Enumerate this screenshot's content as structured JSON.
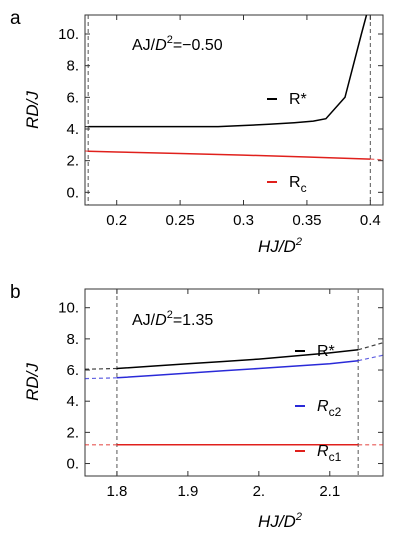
{
  "chart_data": [
    {
      "panel": "a",
      "type": "line",
      "annotation": "AJ/D²=−0.50",
      "annotation_parts": {
        "pre": "AJ/",
        "d": "D",
        "sup": "2",
        "post": "=−0.50"
      },
      "xlabel": "HJ/D²",
      "ylabel": "RD/J",
      "xlim": [
        0.175,
        0.41
      ],
      "ylim": [
        -0.8,
        11.2
      ],
      "xticks": [
        0.2,
        0.25,
        0.3,
        0.35,
        0.4
      ],
      "xtick_labels": [
        "0.2",
        "0.25",
        "0.3",
        "0.35",
        "0.4"
      ],
      "yticks": [
        0,
        2,
        4,
        6,
        8,
        10
      ],
      "ytick_labels": [
        "0.",
        "2.",
        "4.",
        "6.",
        "8.",
        "10."
      ],
      "vlines": [
        0.1775,
        0.4
      ],
      "series": [
        {
          "name": "R*",
          "color": "#000000",
          "x": [
            0.1775,
            0.2,
            0.25,
            0.28,
            0.3,
            0.32,
            0.34,
            0.355,
            0.365,
            0.38,
            0.393,
            0.397
          ],
          "y": [
            4.15,
            4.15,
            4.15,
            4.15,
            4.22,
            4.3,
            4.4,
            4.5,
            4.65,
            6.0,
            10.0,
            11.2
          ],
          "dashed_ext": [
            [
              0.175,
              4.15
            ],
            [
              0.1775,
              4.15
            ]
          ]
        },
        {
          "name": "R_c",
          "color": "#e0201c",
          "x": [
            0.1775,
            0.2,
            0.25,
            0.3,
            0.35,
            0.4
          ],
          "y": [
            2.6,
            2.55,
            2.45,
            2.35,
            2.23,
            2.1
          ],
          "dashed_ext": [
            [
              0.175,
              2.61
            ],
            [
              0.1775,
              2.6
            ],
            [
              0.4,
              2.1
            ],
            [
              0.41,
              2.05
            ]
          ]
        }
      ],
      "legend": [
        {
          "symbol": "–",
          "main": "R*",
          "sub": "",
          "italic": false,
          "color": "#000000"
        },
        {
          "symbol": "–",
          "main": "R",
          "sub": "c",
          "italic": false,
          "color": "#e0201c"
        }
      ],
      "grid": false
    },
    {
      "panel": "b",
      "type": "line",
      "annotation": "AJ/D²=1.35",
      "annotation_parts": {
        "pre": "AJ/",
        "d": "D",
        "sup": "2",
        "post": "=1.35"
      },
      "xlabel": "HJ/D²",
      "ylabel": "RD/J",
      "xlim": [
        1.755,
        2.175
      ],
      "ylim": [
        -0.8,
        11.2
      ],
      "xticks": [
        1.8,
        1.9,
        2.0,
        2.1
      ],
      "xtick_labels": [
        "1.8",
        "1.9",
        "2.",
        "2.1"
      ],
      "yticks": [
        0,
        2,
        4,
        6,
        8,
        10
      ],
      "ytick_labels": [
        "0.",
        "2.",
        "4.",
        "6.",
        "8.",
        "10."
      ],
      "vlines": [
        1.8,
        2.14
      ],
      "series": [
        {
          "name": "R*",
          "color": "#000000",
          "x": [
            1.8,
            1.85,
            1.9,
            1.95,
            2.0,
            2.05,
            2.1,
            2.14
          ],
          "y": [
            6.1,
            6.25,
            6.4,
            6.55,
            6.7,
            6.9,
            7.1,
            7.3
          ],
          "dashed_ext": [
            [
              1.755,
              6.05
            ],
            [
              1.8,
              6.1
            ],
            [
              2.14,
              7.3
            ],
            [
              2.175,
              7.75
            ]
          ]
        },
        {
          "name": "R_c2",
          "color": "#2a2ad8",
          "x": [
            1.8,
            1.85,
            1.9,
            1.95,
            2.0,
            2.05,
            2.1,
            2.14
          ],
          "y": [
            5.5,
            5.65,
            5.8,
            5.95,
            6.1,
            6.25,
            6.4,
            6.6
          ],
          "dashed_ext": [
            [
              1.755,
              5.45
            ],
            [
              1.8,
              5.5
            ],
            [
              2.14,
              6.6
            ],
            [
              2.175,
              6.95
            ]
          ]
        },
        {
          "name": "R_c1",
          "color": "#e0201c",
          "x": [
            1.8,
            1.9,
            2.0,
            2.1,
            2.14
          ],
          "y": [
            1.2,
            1.2,
            1.2,
            1.2,
            1.2
          ],
          "dashed_ext": [
            [
              1.755,
              1.2
            ],
            [
              1.8,
              1.2
            ],
            [
              2.14,
              1.2
            ],
            [
              2.175,
              1.2
            ]
          ]
        }
      ],
      "legend": [
        {
          "symbol": "–",
          "main": "R*",
          "sub": "",
          "italic": false,
          "color": "#000000"
        },
        {
          "symbol": "–",
          "main": "R",
          "sub": "c2",
          "italic": true,
          "color": "#2a2ad8"
        },
        {
          "symbol": "–",
          "main": "R",
          "sub": "c1",
          "italic": true,
          "color": "#e0201c"
        }
      ],
      "grid": false
    }
  ]
}
